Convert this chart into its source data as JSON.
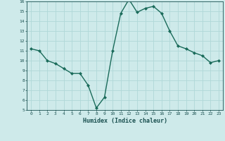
{
  "x": [
    0,
    1,
    2,
    3,
    4,
    5,
    6,
    7,
    8,
    9,
    10,
    11,
    12,
    13,
    14,
    15,
    16,
    17,
    18,
    19,
    20,
    21,
    22,
    23
  ],
  "y": [
    11.2,
    11.0,
    10.0,
    9.7,
    9.2,
    8.7,
    8.7,
    7.5,
    5.2,
    6.3,
    11.0,
    14.8,
    16.2,
    14.9,
    15.3,
    15.5,
    14.8,
    13.0,
    11.5,
    11.2,
    10.8,
    10.5,
    9.8,
    10.0
  ],
  "xlabel": "Humidex (Indice chaleur)",
  "ylim": [
    5,
    16
  ],
  "xlim": [
    -0.5,
    23.5
  ],
  "line_color": "#1a6b5a",
  "bg_color": "#ceeaea",
  "grid_color": "#b0d8d8",
  "tick_color": "#1a5050",
  "label_color": "#1a5050",
  "yticks": [
    5,
    6,
    7,
    8,
    9,
    10,
    11,
    12,
    13,
    14,
    15,
    16
  ],
  "xticks": [
    0,
    1,
    2,
    3,
    4,
    5,
    6,
    7,
    8,
    9,
    10,
    11,
    12,
    13,
    14,
    15,
    16,
    17,
    18,
    19,
    20,
    21,
    22,
    23
  ]
}
